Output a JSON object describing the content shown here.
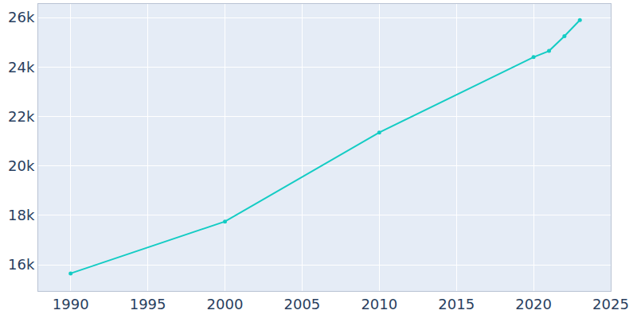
{
  "chart_data": {
    "type": "line",
    "color": "#14ccc4",
    "marker": "circle",
    "grid": true,
    "x": [
      1990,
      2000,
      2010,
      2020,
      2021,
      2022,
      2023
    ],
    "values": [
      15650,
      17750,
      21350,
      24400,
      24650,
      25250,
      25900
    ],
    "xlim": [
      1987.9,
      2025
    ],
    "xticks": [
      1990,
      1995,
      2000,
      2005,
      2010,
      2015,
      2020,
      2025
    ],
    "ylim": [
      14940,
      26550
    ],
    "yticks": [
      {
        "value": 16000,
        "label": "16k"
      },
      {
        "value": 18000,
        "label": "18k"
      },
      {
        "value": 20000,
        "label": "20k"
      },
      {
        "value": 22000,
        "label": "22k"
      },
      {
        "value": 24000,
        "label": "24k"
      },
      {
        "value": 26000,
        "label": "26k"
      }
    ]
  }
}
